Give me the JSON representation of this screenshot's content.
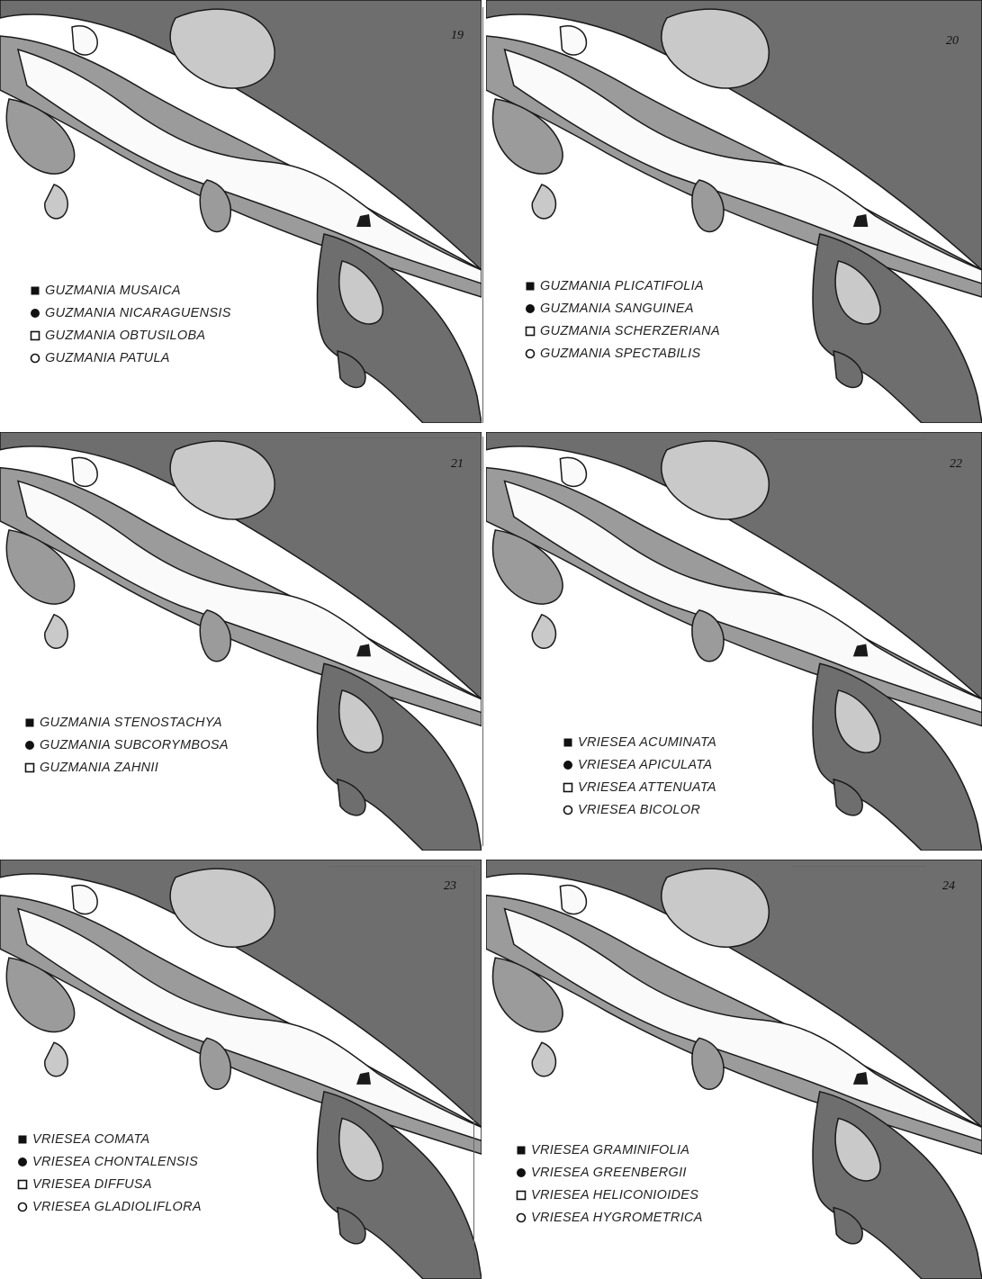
{
  "figure": {
    "colors": {
      "paper": "#ffffff",
      "lowland_dark": "#6e6e6e",
      "middle_gray": "#9b9b9b",
      "light_gray": "#c9c9c9",
      "upland_white": "#fafafa",
      "outline": "#1a1a1a"
    },
    "panels": [
      {
        "number": "19",
        "legend": [
          {
            "symbol": "filled-square",
            "label": "GUZMANIA MUSAICA"
          },
          {
            "symbol": "filled-circle",
            "label": "GUZMANIA NICARAGUENSIS"
          },
          {
            "symbol": "open-square",
            "label": "GUZMANIA OBTUSILOBA"
          },
          {
            "symbol": "open-circle",
            "label": "GUZMANIA PATULA"
          }
        ]
      },
      {
        "number": "20",
        "legend": [
          {
            "symbol": "filled-square",
            "label": "GUZMANIA PLICATIFOLIA"
          },
          {
            "symbol": "filled-circle",
            "label": "GUZMANIA SANGUINEA"
          },
          {
            "symbol": "open-square",
            "label": "GUZMANIA SCHERZERIANA"
          },
          {
            "symbol": "open-circle",
            "label": "GUZMANIA SPECTABILIS"
          }
        ]
      },
      {
        "number": "21",
        "legend": [
          {
            "symbol": "filled-square",
            "label": "GUZMANIA STENOSTACHYA"
          },
          {
            "symbol": "filled-circle",
            "label": "GUZMANIA SUBCORYMBOSA"
          },
          {
            "symbol": "open-square",
            "label": "GUZMANIA ZAHNII"
          }
        ]
      },
      {
        "number": "22",
        "legend": [
          {
            "symbol": "filled-square",
            "label": "VRIESEA ACUMINATA"
          },
          {
            "symbol": "filled-circle",
            "label": "VRIESEA APICULATA"
          },
          {
            "symbol": "open-square",
            "label": "VRIESEA ATTENUATA"
          },
          {
            "symbol": "open-circle",
            "label": "VRIESEA BICOLOR"
          }
        ]
      },
      {
        "number": "23",
        "legend": [
          {
            "symbol": "filled-square",
            "label": "VRIESEA COMATA"
          },
          {
            "symbol": "filled-circle",
            "label": "VRIESEA CHONTALENSIS"
          },
          {
            "symbol": "open-square",
            "label": "VRIESEA DIFFUSA"
          },
          {
            "symbol": "open-circle",
            "label": "VRIESEA GLADIOLIFLORA"
          }
        ]
      },
      {
        "number": "24",
        "legend": [
          {
            "symbol": "filled-square",
            "label": "VRIESEA GRAMINIFOLIA"
          },
          {
            "symbol": "filled-circle",
            "label": "VRIESEA GREENBERGII"
          },
          {
            "symbol": "open-square",
            "label": "VRIESEA HELICONIOIDES"
          },
          {
            "symbol": "open-circle",
            "label": "VRIESEA HYGROMETRICA"
          }
        ]
      }
    ]
  }
}
